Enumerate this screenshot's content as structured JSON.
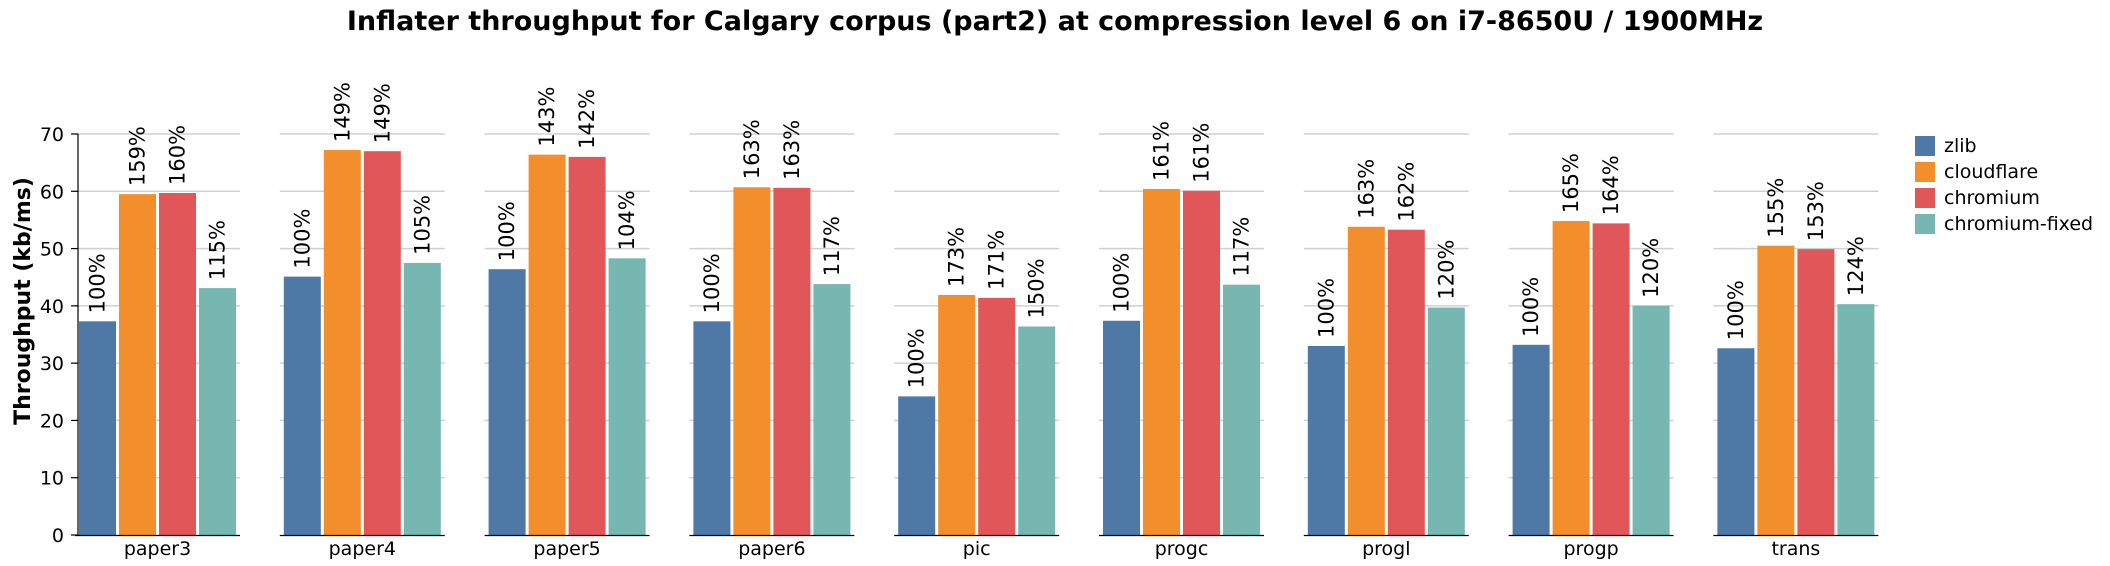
{
  "chart_data": {
    "type": "bar",
    "title": "Inflater throughput for Calgary corpus (part2) at compression level 6 on i7-8650U / 1900MHz",
    "ylabel": "Throughput (kb/ms)",
    "xlabel": "",
    "ylim": [
      0,
      70
    ],
    "yticks": [
      0,
      10,
      20,
      30,
      40,
      50,
      60,
      70
    ],
    "grid": true,
    "legend_position": "right",
    "categories": [
      "paper3",
      "paper4",
      "paper5",
      "paper6",
      "pic",
      "progc",
      "progl",
      "progp",
      "trans"
    ],
    "series": [
      {
        "name": "zlib",
        "color": "#4e79a7",
        "values": [
          37.3,
          45.1,
          46.4,
          37.3,
          24.2,
          37.4,
          33.0,
          33.2,
          32.6
        ],
        "labels": [
          "100%",
          "100%",
          "100%",
          "100%",
          "100%",
          "100%",
          "100%",
          "100%",
          "100%"
        ]
      },
      {
        "name": "cloudflare",
        "color": "#f28e2b",
        "values": [
          59.5,
          67.2,
          66.4,
          60.7,
          41.9,
          60.4,
          53.8,
          54.8,
          50.5
        ],
        "labels": [
          "159%",
          "149%",
          "143%",
          "163%",
          "173%",
          "161%",
          "163%",
          "165%",
          "155%"
        ]
      },
      {
        "name": "chromium",
        "color": "#e15759",
        "values": [
          59.7,
          67.0,
          66.0,
          60.6,
          41.4,
          60.1,
          53.3,
          54.4,
          49.9
        ],
        "labels": [
          "160%",
          "149%",
          "142%",
          "163%",
          "171%",
          "161%",
          "162%",
          "164%",
          "153%"
        ]
      },
      {
        "name": "chromium-fixed",
        "color": "#76b7b2",
        "values": [
          43.1,
          47.5,
          48.3,
          43.8,
          36.4,
          43.7,
          39.7,
          40.0,
          40.3
        ],
        "labels": [
          "115%",
          "105%",
          "104%",
          "117%",
          "150%",
          "117%",
          "120%",
          "120%",
          "124%"
        ]
      }
    ]
  }
}
